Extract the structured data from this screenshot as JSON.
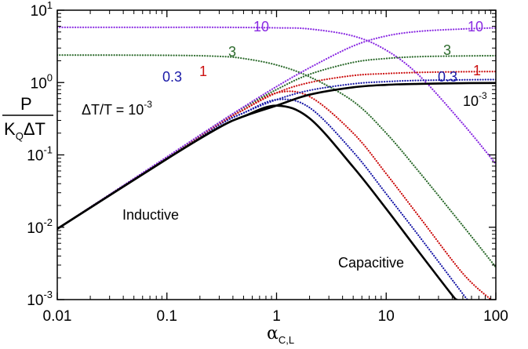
{
  "chart_data": {
    "type": "line",
    "x_scale": "log",
    "y_scale": "log",
    "xlim": [
      0.01,
      100
    ],
    "ylim": [
      0.001,
      10
    ],
    "x_ticks": [
      "0.01",
      "0.1",
      "1",
      "10",
      "100"
    ],
    "y_ticks": [
      {
        "base": "10",
        "exp": "-3"
      },
      {
        "base": "10",
        "exp": "-2"
      },
      {
        "base": "10",
        "exp": "-1"
      },
      {
        "base": "10",
        "exp": "0"
      },
      {
        "base": "10",
        "exp": "1"
      }
    ],
    "y_tick_values": [
      0.001,
      0.01,
      0.1,
      1,
      10
    ],
    "x_tick_values": [
      0.01,
      0.1,
      1,
      10,
      100
    ],
    "xlabel": {
      "main": "α",
      "sub": "C,L"
    },
    "ylabel": {
      "numerator": "P",
      "denominator_a": "K",
      "denominator_sub": "Q",
      "denominator_b": "ΔT"
    },
    "grid": false,
    "series": [
      {
        "name": "10⁻³",
        "dT_over_T": 0.001,
        "family": "capacitive",
        "color": "#000000",
        "style": "solid",
        "x": [
          0.01,
          0.1,
          0.3,
          0.5,
          1,
          2,
          5,
          10,
          20,
          40,
          44
        ],
        "y": [
          0.0095,
          0.088,
          0.24,
          0.34,
          0.48,
          0.32,
          0.068,
          0.018,
          0.0045,
          0.00115,
          0.001
        ]
      },
      {
        "name": "0.3",
        "dT_over_T": 0.3,
        "family": "capacitive",
        "color": "#1a1aa8",
        "style": "dotted",
        "x": [
          0.01,
          0.1,
          0.3,
          0.5,
          1,
          2,
          5,
          10,
          20,
          50,
          55
        ],
        "y": [
          0.0095,
          0.09,
          0.26,
          0.38,
          0.58,
          0.45,
          0.11,
          0.029,
          0.0075,
          0.0012,
          0.001
        ]
      },
      {
        "name": "1",
        "dT_over_T": 1,
        "family": "capacitive",
        "color": "#cc1111",
        "style": "dotted",
        "x": [
          0.01,
          0.1,
          0.3,
          0.5,
          1,
          2,
          5,
          10,
          20,
          50,
          90
        ],
        "y": [
          0.0095,
          0.092,
          0.27,
          0.42,
          0.72,
          0.64,
          0.2,
          0.055,
          0.014,
          0.0023,
          0.001
        ]
      },
      {
        "name": "3",
        "dT_over_T": 3,
        "family": "capacitive",
        "color": "#2d6b2d",
        "style": "dotted",
        "x": [
          0.01,
          0.1,
          0.3,
          0.5,
          1,
          2,
          5,
          10,
          20,
          50,
          100
        ],
        "y": [
          2.4,
          2.38,
          2.3,
          2.15,
          1.75,
          1.2,
          0.55,
          0.2,
          0.058,
          0.0105,
          0.0028
        ]
      },
      {
        "name": "10",
        "dT_over_T": 10,
        "family": "capacitive",
        "color": "#8a2be2",
        "style": "dotted",
        "x": [
          0.01,
          0.1,
          0.3,
          1,
          2,
          5,
          10,
          20,
          50,
          100
        ],
        "y": [
          5.8,
          5.8,
          5.8,
          5.7,
          5.5,
          4.4,
          2.8,
          1.25,
          0.27,
          0.075
        ]
      },
      {
        "name": "10⁻³",
        "dT_over_T": 0.001,
        "family": "inductive",
        "color": "#000000",
        "style": "solid",
        "x": [
          0.01,
          0.1,
          0.3,
          0.5,
          1,
          2,
          5,
          10,
          20,
          50,
          100
        ],
        "y": [
          0.0095,
          0.088,
          0.24,
          0.34,
          0.48,
          0.68,
          0.86,
          0.93,
          0.96,
          0.98,
          0.985
        ]
      },
      {
        "name": "0.3",
        "dT_over_T": 0.3,
        "family": "inductive",
        "color": "#1a1aa8",
        "style": "dotted",
        "x": [
          0.01,
          0.1,
          0.3,
          0.5,
          1,
          2,
          5,
          10,
          20,
          50,
          100
        ],
        "y": [
          0.0095,
          0.09,
          0.26,
          0.38,
          0.58,
          0.78,
          0.96,
          1.03,
          1.07,
          1.09,
          1.1
        ]
      },
      {
        "name": "1",
        "dT_over_T": 1,
        "family": "inductive",
        "color": "#cc1111",
        "style": "dotted",
        "x": [
          0.01,
          0.1,
          0.3,
          0.5,
          1,
          2,
          5,
          10,
          20,
          50,
          100
        ],
        "y": [
          0.0095,
          0.092,
          0.27,
          0.42,
          0.72,
          1.0,
          1.25,
          1.33,
          1.38,
          1.41,
          1.42
        ]
      },
      {
        "name": "3",
        "dT_over_T": 3,
        "family": "inductive",
        "color": "#2d6b2d",
        "style": "dotted",
        "x": [
          0.01,
          0.1,
          0.3,
          0.5,
          1,
          2,
          5,
          10,
          20,
          50,
          100
        ],
        "y": [
          0.0095,
          0.093,
          0.28,
          0.45,
          0.8,
          1.3,
          1.9,
          2.15,
          2.28,
          2.33,
          2.35
        ]
      },
      {
        "name": "10",
        "dT_over_T": 10,
        "family": "inductive",
        "color": "#8a2be2",
        "style": "dotted",
        "x": [
          0.01,
          0.1,
          0.3,
          0.5,
          1,
          2,
          5,
          10,
          20,
          50,
          100
        ],
        "y": [
          0.0095,
          0.094,
          0.28,
          0.46,
          0.88,
          1.6,
          3.2,
          4.4,
          5.1,
          5.5,
          5.7
        ]
      }
    ],
    "annotations": {
      "dt_label_main": "ΔT/T = 10",
      "dt_label_exp": "-3",
      "right_base": "10",
      "right_exp": "-3",
      "inductive": "Inductive",
      "capacitive": "Capacitive",
      "left_labels": [
        {
          "text": "10",
          "color": "#8a2be2"
        },
        {
          "text": "3",
          "color": "#2d6b2d"
        },
        {
          "text": "1",
          "color": "#cc1111"
        },
        {
          "text": "0.3",
          "color": "#1a1aa8"
        }
      ],
      "right_labels": [
        {
          "text": "10",
          "color": "#8a2be2"
        },
        {
          "text": "3",
          "color": "#2d6b2d"
        },
        {
          "text": "1",
          "color": "#cc1111"
        },
        {
          "text": "0.3",
          "color": "#1a1aa8"
        }
      ]
    }
  }
}
